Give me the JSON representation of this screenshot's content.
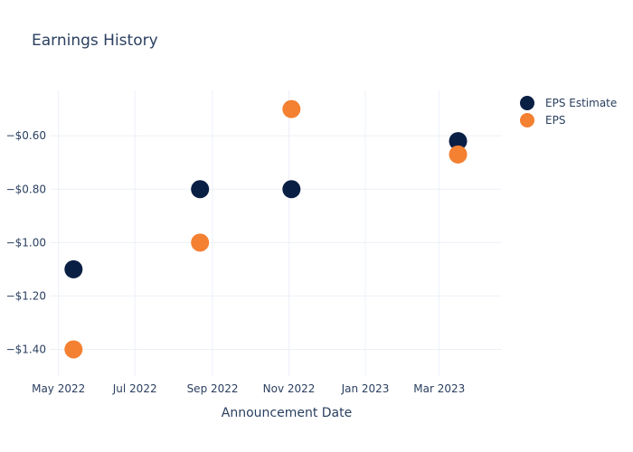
{
  "chart_data": {
    "type": "scatter",
    "title": "Earnings History",
    "xlabel": "Announcement Date",
    "ylabel": "",
    "x_axis": {
      "type": "date",
      "range": [
        "2022-04-24",
        "2023-04-20"
      ],
      "ticks": [
        {
          "date": "2022-05-01",
          "label": "May 2022"
        },
        {
          "date": "2022-07-01",
          "label": "Jul 2022"
        },
        {
          "date": "2022-09-01",
          "label": "Sep 2022"
        },
        {
          "date": "2022-11-01",
          "label": "Nov 2022"
        },
        {
          "date": "2023-01-01",
          "label": "Jan 2023"
        },
        {
          "date": "2023-03-01",
          "label": "Mar 2023"
        }
      ]
    },
    "y_axis": {
      "range": [
        -1.5,
        -0.43
      ],
      "ticks": [
        {
          "value": -1.4,
          "label": "−$1.40"
        },
        {
          "value": -1.2,
          "label": "−$1.20"
        },
        {
          "value": -1.0,
          "label": "−$1.00"
        },
        {
          "value": -0.8,
          "label": "−$0.80"
        },
        {
          "value": -0.6,
          "label": "−$0.60"
        }
      ]
    },
    "grid": true,
    "legend": "top-right",
    "series": [
      {
        "name": "EPS Estimate",
        "color": "#0a1f44",
        "points": [
          {
            "x": "2022-05-13",
            "y": -1.1
          },
          {
            "x": "2022-08-22",
            "y": -0.8
          },
          {
            "x": "2022-11-03",
            "y": -0.8
          },
          {
            "x": "2023-03-16",
            "y": -0.62
          }
        ]
      },
      {
        "name": "EPS",
        "color": "#f48031",
        "points": [
          {
            "x": "2022-05-13",
            "y": -1.4
          },
          {
            "x": "2022-08-22",
            "y": -1.0
          },
          {
            "x": "2022-11-03",
            "y": -0.5
          },
          {
            "x": "2023-03-16",
            "y": -0.67
          }
        ]
      }
    ]
  }
}
